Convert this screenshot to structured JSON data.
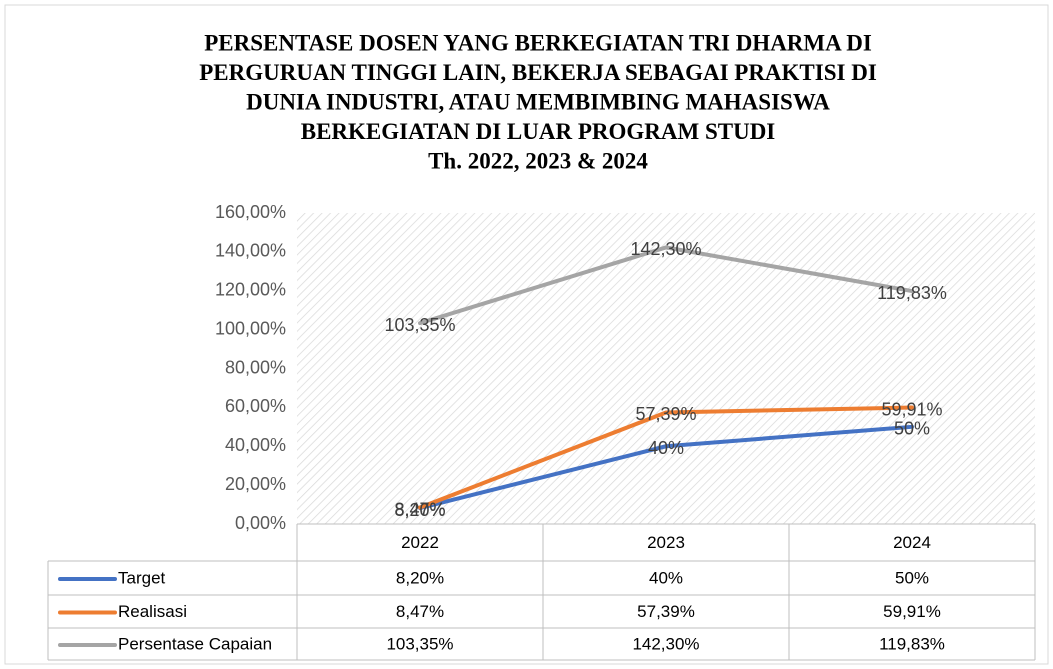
{
  "chart_data": {
    "type": "line",
    "title": [
      "PERSENTASE DOSEN YANG BERKEGIATAN TRI DHARMA DI",
      "PERGURUAN TINGGI LAIN, BEKERJA SEBAGAI PRAKTISI DI",
      "DUNIA INDUSTRI, ATAU MEMBIMBING MAHASISWA",
      "BERKEGIATAN DI LUAR PROGRAM STUDI",
      "Th. 2022, 2023 & 2024"
    ],
    "categories": [
      "2022",
      "2023",
      "2024"
    ],
    "series": [
      {
        "name": "Target",
        "color": "#4472c4",
        "values": [
          8.2,
          40,
          50
        ],
        "value_labels": [
          "8,20%",
          "40%",
          "50%"
        ]
      },
      {
        "name": "Realisasi",
        "color": "#ed7d31",
        "values": [
          8.47,
          57.39,
          59.91
        ],
        "value_labels": [
          "8,47%",
          "57,39%",
          "59,91%"
        ]
      },
      {
        "name": "Persentase Capaian",
        "color": "#a5a5a5",
        "values": [
          103.35,
          142.3,
          119.83
        ],
        "value_labels": [
          "103,35%",
          "142,30%",
          "119,83%"
        ]
      }
    ],
    "ylim": [
      0,
      160
    ],
    "yticks": [
      {
        "value": 0,
        "label": "0,00%"
      },
      {
        "value": 20,
        "label": "20,00%"
      },
      {
        "value": 40,
        "label": "40,00%"
      },
      {
        "value": 60,
        "label": "60,00%"
      },
      {
        "value": 80,
        "label": "80,00%"
      },
      {
        "value": 100,
        "label": "100,00%"
      },
      {
        "value": 120,
        "label": "120,00%"
      },
      {
        "value": 140,
        "label": "140,00%"
      },
      {
        "value": 160,
        "label": "160,00%"
      }
    ],
    "data_table": true
  }
}
